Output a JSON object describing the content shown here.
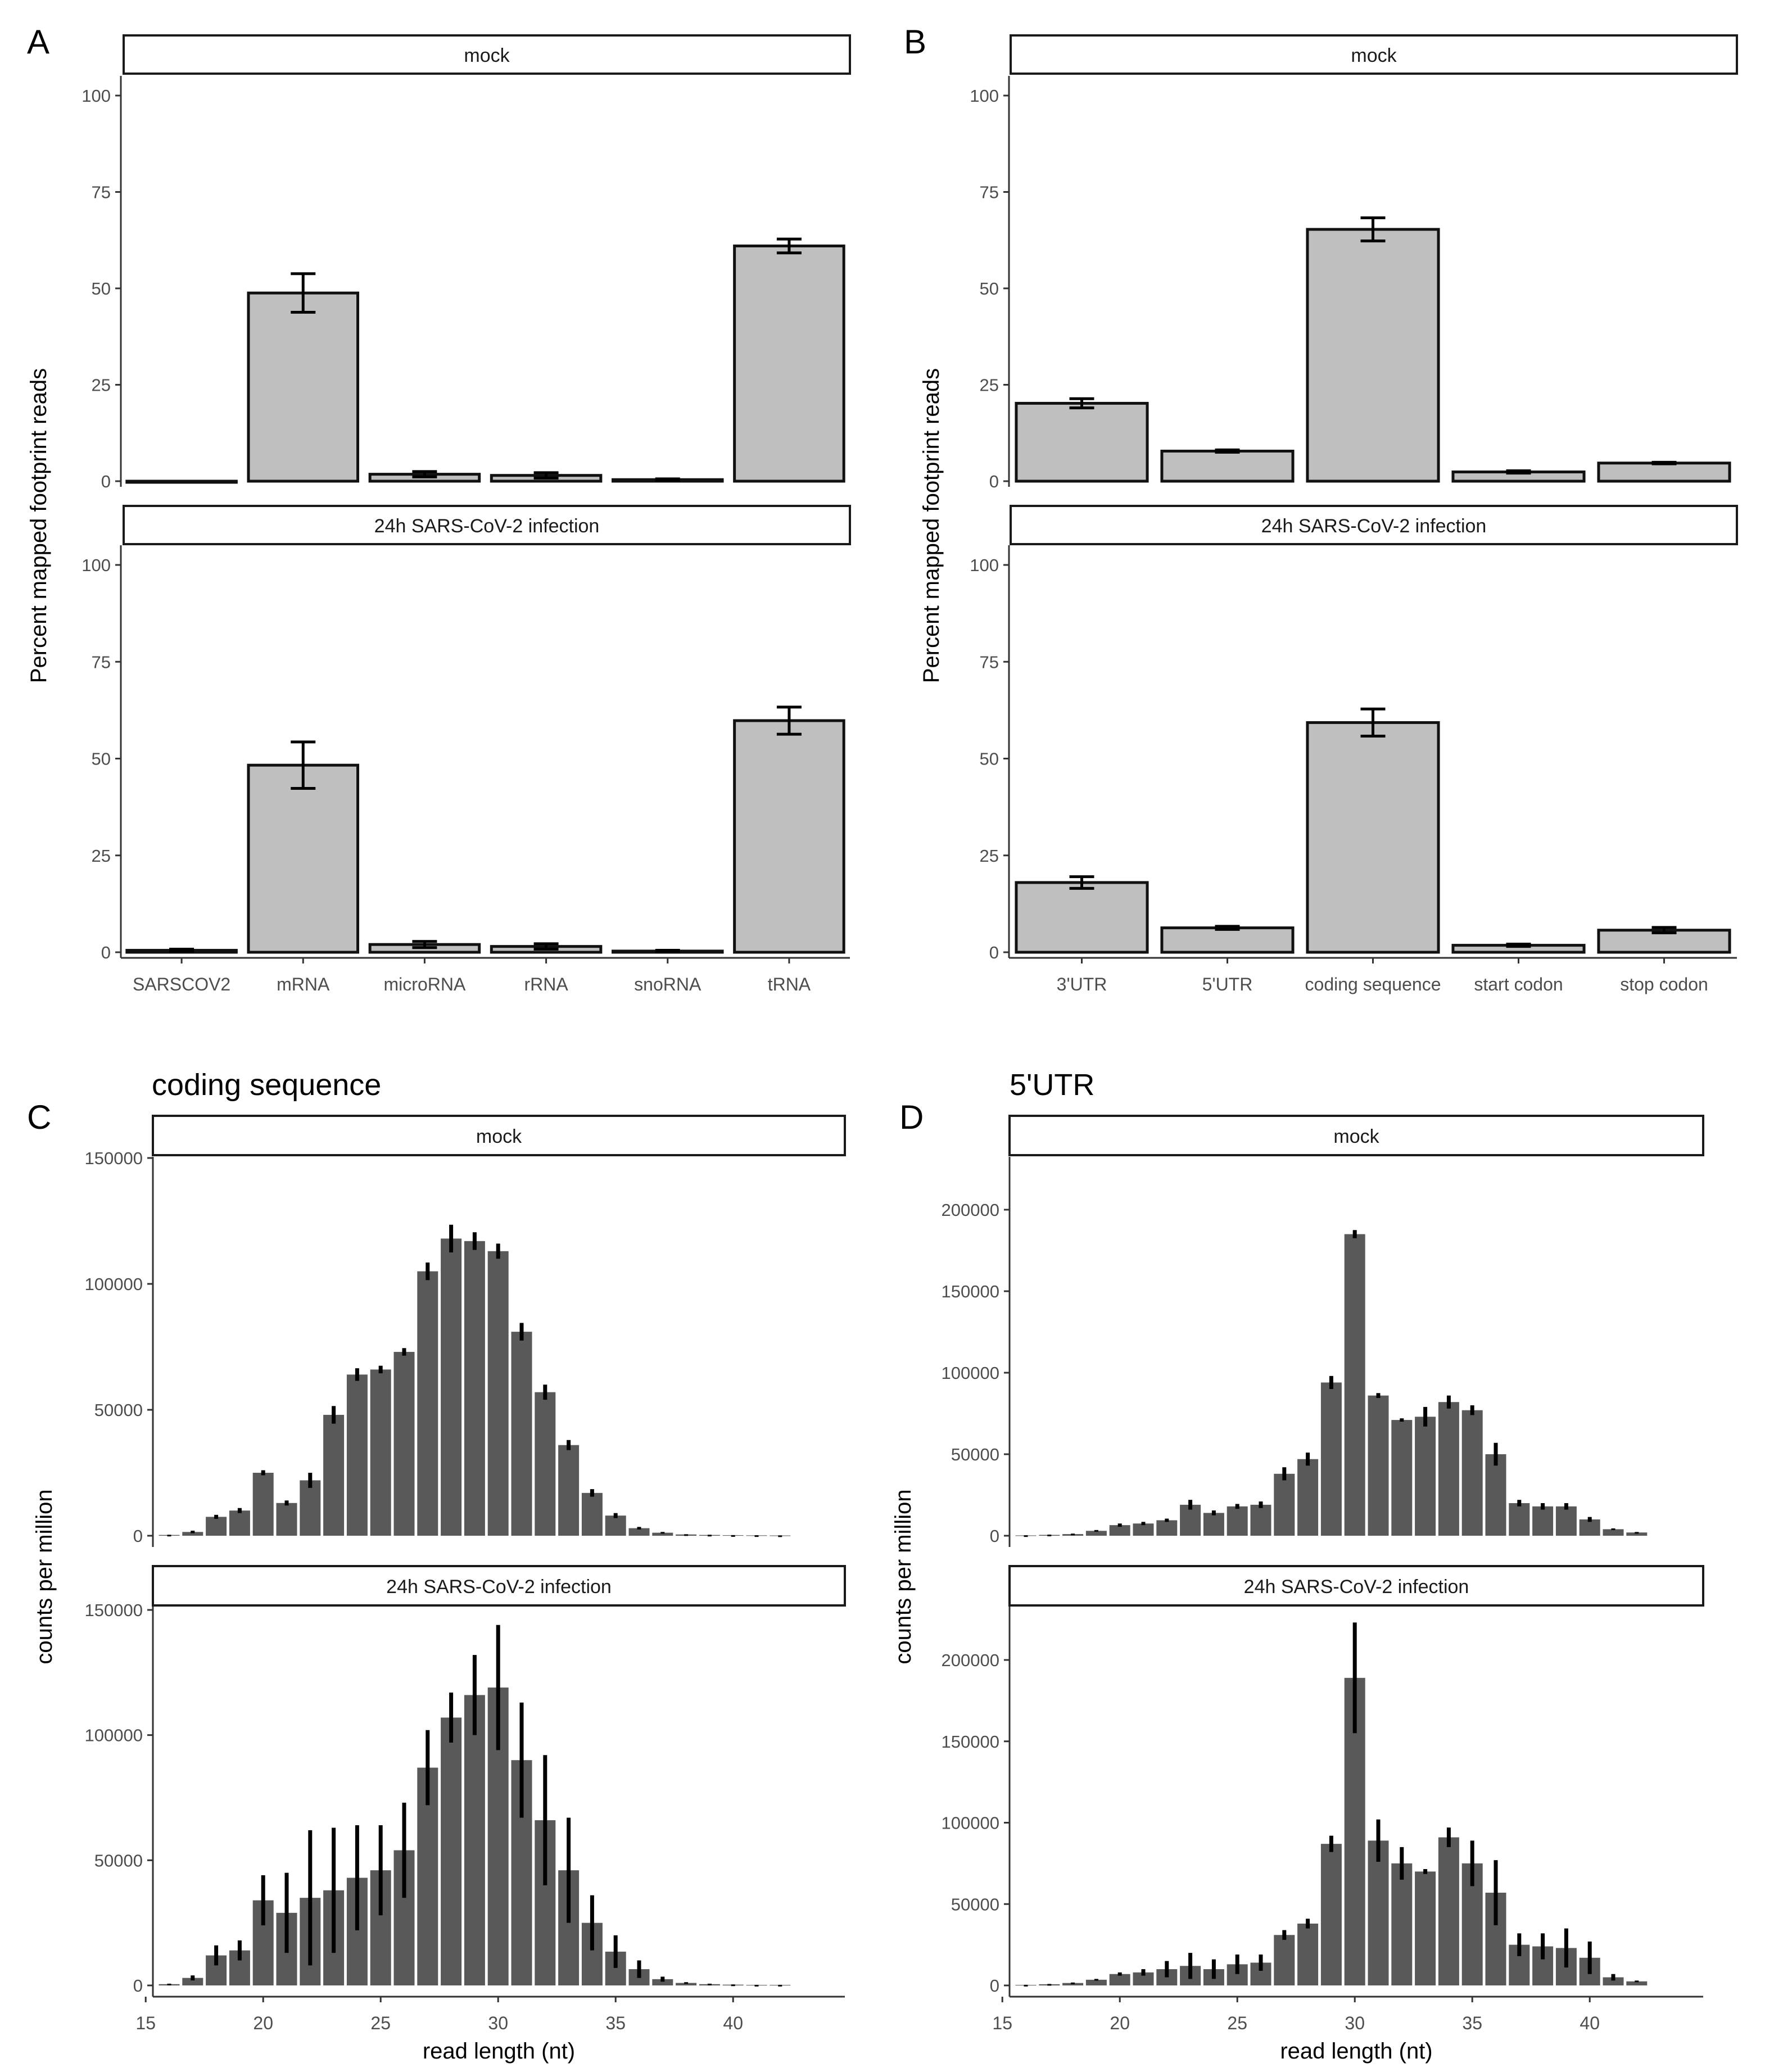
{
  "chart_data": [
    {
      "id": "A",
      "panel_letter": "A",
      "type": "bar",
      "title": "",
      "ylabel": "Percent mapped footprint reads",
      "xlabel": "",
      "ylim": [
        0,
        100
      ],
      "yticks": [
        0,
        25,
        50,
        75,
        100
      ],
      "categories": [
        "SARSCOV2",
        "mRNA",
        "microRNA",
        "rRNA",
        "snoRNA",
        "tRNA"
      ],
      "facets": [
        {
          "label": "mock",
          "values": [
            0,
            48.8,
            1.8,
            1.5,
            0.4,
            61
          ],
          "errors": [
            0,
            5,
            0.7,
            0.7,
            0.2,
            1.8
          ]
        },
        {
          "label": "24h SARS-CoV-2 infection",
          "values": [
            0.5,
            48.3,
            2,
            1.5,
            0.3,
            59.8
          ],
          "errors": [
            0.3,
            6,
            0.8,
            0.7,
            0.2,
            3.5
          ]
        }
      ]
    },
    {
      "id": "B",
      "panel_letter": "B",
      "type": "bar",
      "title": "",
      "ylabel": "Percent mapped footprint reads",
      "xlabel": "",
      "ylim": [
        0,
        100
      ],
      "yticks": [
        0,
        25,
        50,
        75,
        100
      ],
      "categories": [
        "3'UTR",
        "5'UTR",
        "coding sequence",
        "start codon",
        "stop codon"
      ],
      "facets": [
        {
          "label": "mock",
          "values": [
            20.2,
            7.8,
            65.3,
            2.4,
            4.7
          ],
          "errors": [
            1.2,
            0.3,
            3,
            0.3,
            0.2
          ]
        },
        {
          "label": "24h SARS-CoV-2 infection",
          "values": [
            18,
            6.3,
            59.3,
            1.8,
            5.7
          ],
          "errors": [
            1.5,
            0.4,
            3.5,
            0.3,
            0.7
          ]
        }
      ]
    },
    {
      "id": "C",
      "panel_letter": "C",
      "type": "bar",
      "title": "coding sequence",
      "ylabel": "counts per million",
      "xlabel": "read length (nt)",
      "ylim": [
        0,
        150000
      ],
      "yticks": [
        0,
        50000,
        100000,
        150000
      ],
      "xlim": [
        14.5,
        43.5
      ],
      "xticks": [
        15,
        20,
        25,
        30,
        35,
        40
      ],
      "x": [
        16,
        17,
        18,
        19,
        20,
        21,
        22,
        23,
        24,
        25,
        26,
        27,
        28,
        29,
        30,
        31,
        32,
        33,
        34,
        35,
        36,
        37,
        38,
        39,
        40,
        41,
        42
      ],
      "facets": [
        {
          "label": "mock",
          "values": [
            300,
            1500,
            7500,
            10000,
            25000,
            13000,
            22000,
            48000,
            64000,
            66000,
            73000,
            105000,
            118000,
            117000,
            113000,
            81000,
            57000,
            36000,
            17000,
            8000,
            3000,
            1200,
            500,
            300,
            200,
            150,
            100
          ],
          "errors": [
            100,
            500,
            800,
            1000,
            1000,
            1000,
            3000,
            3500,
            2500,
            1500,
            1500,
            3500,
            5500,
            3500,
            3000,
            3500,
            3000,
            2000,
            1500,
            1000,
            500,
            300,
            100,
            100,
            50,
            50,
            50
          ]
        },
        {
          "label": "24h SARS-CoV-2 infection",
          "values": [
            500,
            3000,
            12000,
            14000,
            34000,
            29000,
            35000,
            38000,
            43000,
            46000,
            54000,
            87000,
            107000,
            116000,
            119000,
            90000,
            66000,
            46000,
            25000,
            13500,
            6500,
            2500,
            1000,
            500,
            300,
            200,
            200
          ],
          "errors": [
            200,
            1000,
            4000,
            4000,
            10000,
            16000,
            27000,
            25000,
            21000,
            18000,
            19000,
            15000,
            10000,
            16000,
            25000,
            23000,
            26000,
            21000,
            11000,
            6500,
            3500,
            1000,
            300,
            200,
            100,
            50,
            50
          ]
        }
      ]
    },
    {
      "id": "D",
      "panel_letter": "D",
      "type": "bar",
      "title": "5'UTR",
      "ylabel": "counts per million",
      "xlabel": "read length (nt)",
      "ylim": [
        0,
        235000
      ],
      "yticks": [
        0,
        50000,
        100000,
        150000,
        200000
      ],
      "xlim": [
        14.5,
        43.5
      ],
      "xticks": [
        15,
        20,
        25,
        30,
        35,
        40
      ],
      "x": [
        16,
        17,
        18,
        19,
        20,
        21,
        22,
        23,
        24,
        25,
        26,
        27,
        28,
        29,
        30,
        31,
        32,
        33,
        34,
        35,
        36,
        37,
        38,
        39,
        40,
        41,
        42
      ],
      "facets": [
        {
          "label": "mock",
          "values": [
            200,
            500,
            1000,
            3000,
            6500,
            7500,
            9500,
            19000,
            14000,
            18000,
            19000,
            38000,
            47000,
            94000,
            185000,
            86000,
            71000,
            73000,
            82000,
            77000,
            50000,
            20000,
            18000,
            18000,
            10000,
            4000,
            2000
          ],
          "errors": [
            100,
            200,
            300,
            500,
            1000,
            1000,
            1000,
            3000,
            1500,
            1500,
            2000,
            4000,
            4000,
            4000,
            2500,
            1500,
            1000,
            6000,
            4000,
            3000,
            7000,
            2000,
            2000,
            2000,
            1500,
            500,
            300
          ]
        },
        {
          "label": "24h SARS-CoV-2 infection",
          "values": [
            300,
            700,
            1500,
            3500,
            7000,
            8000,
            10000,
            12000,
            10000,
            13000,
            14000,
            31000,
            38000,
            87000,
            189000,
            89000,
            75000,
            70000,
            91000,
            75000,
            57000,
            25000,
            24000,
            23000,
            17000,
            5000,
            2500
          ],
          "errors": [
            100,
            200,
            300,
            500,
            1000,
            2000,
            5000,
            8000,
            6000,
            6000,
            5000,
            3000,
            3000,
            5000,
            34000,
            13000,
            10000,
            1500,
            6000,
            14000,
            20000,
            7000,
            8000,
            12000,
            10000,
            2000,
            500
          ]
        }
      ]
    }
  ]
}
